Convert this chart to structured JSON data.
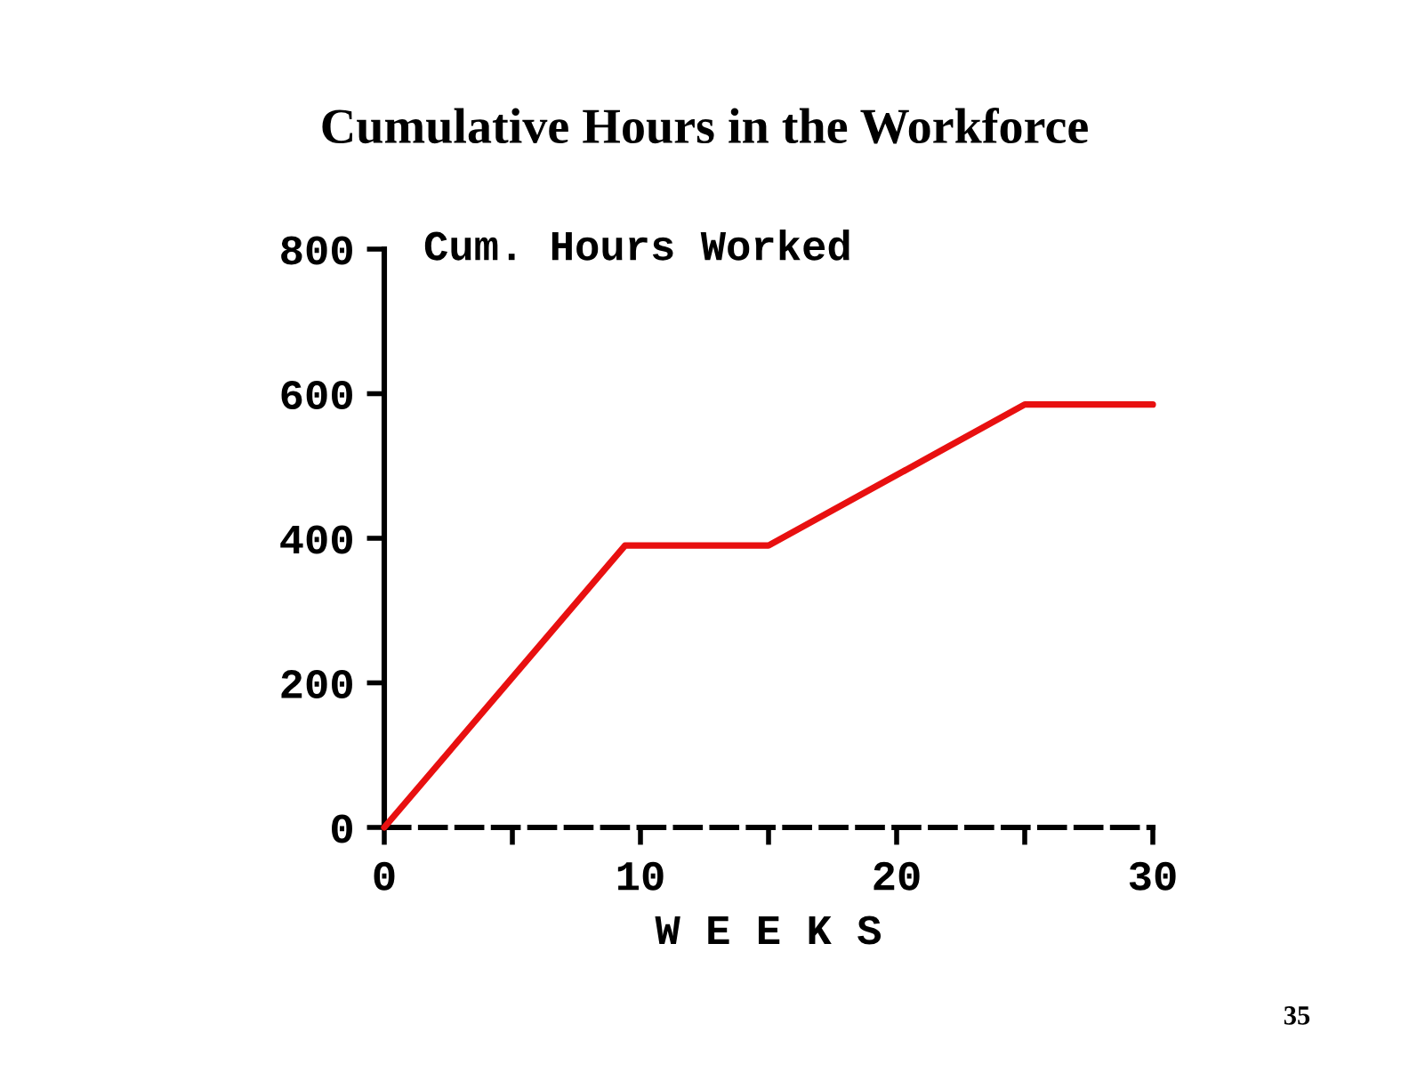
{
  "chart_data": {
    "type": "line",
    "title": "Cumulative Hours in the Workforce",
    "xlabel": "W E E K S",
    "ylabel": "Cum. Hours Worked",
    "annotations": [
      "35"
    ],
    "x": [
      0,
      9.4,
      15,
      25,
      30
    ],
    "series": [
      {
        "color": "#e81010",
        "values": [
          0,
          390,
          390,
          585,
          585
        ]
      }
    ],
    "xlim": [
      0,
      30
    ],
    "ylim": [
      0,
      800
    ],
    "xticks": [
      0,
      {
        "value": 5,
        "label": null
      },
      10,
      {
        "value": 15,
        "label": null
      },
      20,
      {
        "value": 25,
        "label": null
      },
      30
    ],
    "yticks": [
      0,
      200,
      400,
      600,
      800
    ],
    "grid": false,
    "line_style": "solid"
  }
}
